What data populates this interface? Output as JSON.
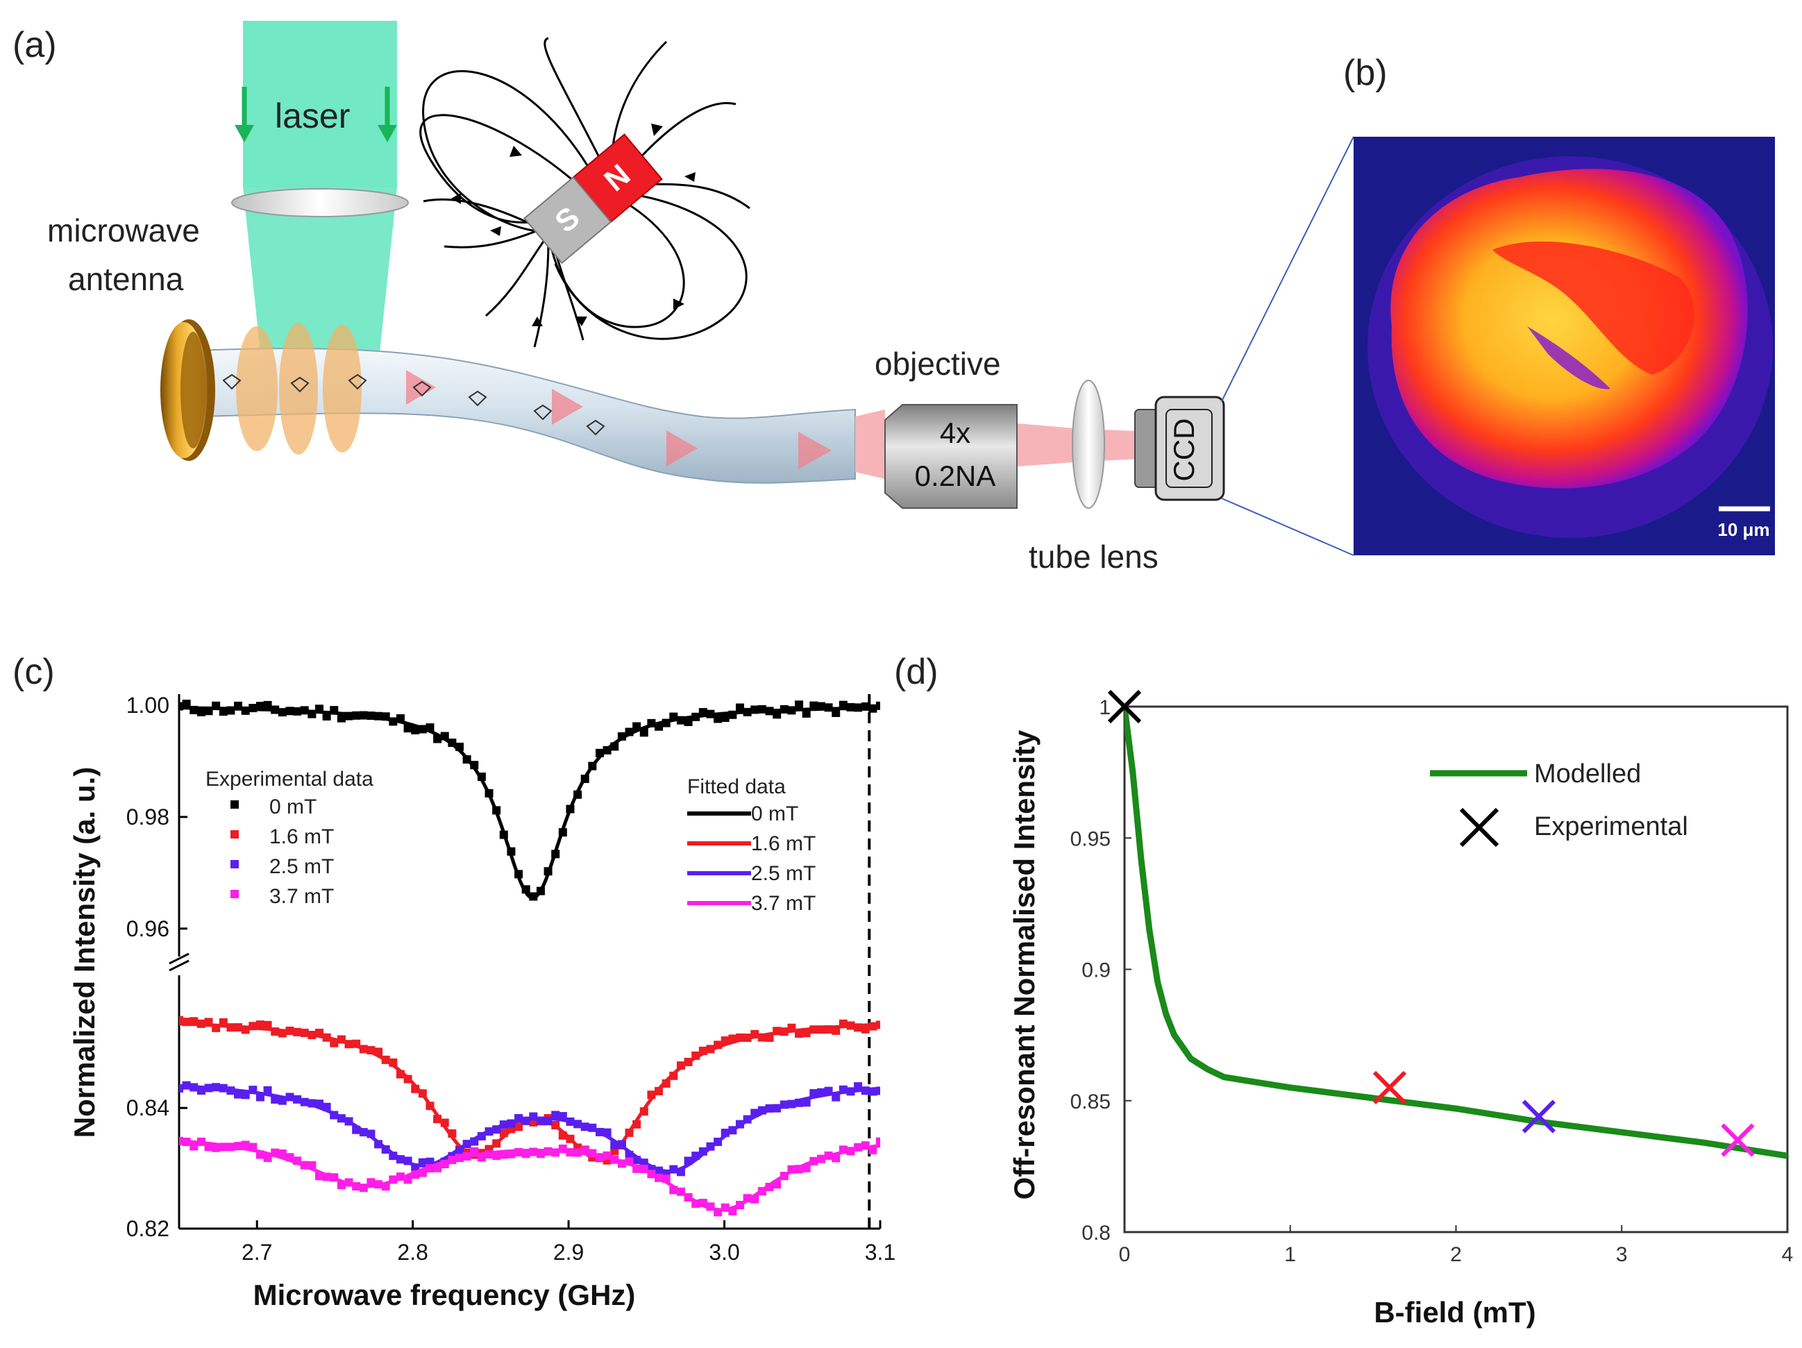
{
  "panels": {
    "a": {
      "label": "(a)",
      "laser": "laser",
      "antenna_line1": "microwave",
      "antenna_line2": "antenna",
      "objective": "objective",
      "objective_mag": "4x",
      "objective_na": "0.2NA",
      "tube_lens": "tube lens",
      "ccd": "CCD",
      "magnet_n": "N",
      "magnet_s": "S"
    },
    "b": {
      "label": "(b)",
      "scale_bar": "10 μm"
    },
    "c": {
      "label": "(c)"
    },
    "d": {
      "label": "(d)"
    }
  },
  "colors": {
    "laser": "#72e8c4",
    "fiber": "#c6d7e4",
    "red": "#ee1c24",
    "blue": "#5a1ff0",
    "magenta": "#ff1de8",
    "green": "#1a8a1a"
  },
  "chart_data": [
    {
      "id": "c",
      "type": "scatter",
      "title": "",
      "xlabel": "Microwave frequency (GHz)",
      "ylabel": "Normalized Intensity (a. u.)",
      "xlim": [
        2.65,
        3.1
      ],
      "xticks": [
        "2.7",
        "2.8",
        "2.9",
        "3.0",
        "3.1"
      ],
      "xtick_values": [
        2.7,
        2.8,
        2.9,
        3.0,
        3.1
      ],
      "yticks_upper": [
        "0.96",
        "0.98",
        "1.00"
      ],
      "yticks_upper_values": [
        0.96,
        0.98,
        1.0
      ],
      "yticks_lower": [
        "0.82",
        "0.84"
      ],
      "yticks_lower_values": [
        0.82,
        0.84
      ],
      "ylim_upper": [
        0.955,
        1.002
      ],
      "ylim_lower": [
        0.82,
        0.862
      ],
      "axis_break": "between 0.96 and 0.84",
      "legend_experimental": {
        "title": "Experimental data",
        "entries": [
          "0 mT",
          "1.6 mT",
          "2.5 mT",
          "3.7 mT"
        ]
      },
      "legend_fitted": {
        "title": "Fitted data",
        "entries": [
          "0 mT",
          "1.6 mT",
          "2.5 mT",
          "3.7 mT"
        ]
      },
      "series": [
        {
          "name": "0 mT",
          "color": "#000000",
          "axis": "upper",
          "fit": {
            "baseline": 1.0,
            "dips": [
              {
                "center": 2.877,
                "depth": 0.0345,
                "hwhm": 0.026
              }
            ]
          }
        },
        {
          "name": "1.6 mT",
          "color": "#ee1c24",
          "axis": "lower",
          "fit": {
            "baseline": 0.855,
            "dips": [
              {
                "center": 2.838,
                "depth": 0.0195,
                "hwhm": 0.036
              },
              {
                "center": 2.922,
                "depth": 0.0205,
                "hwhm": 0.036
              }
            ]
          }
        },
        {
          "name": "2.5 mT",
          "color": "#5a1ff0",
          "axis": "lower",
          "fit": {
            "baseline": 0.845,
            "dips": [
              {
                "center": 2.805,
                "depth": 0.0135,
                "hwhm": 0.045
              },
              {
                "center": 2.965,
                "depth": 0.0145,
                "hwhm": 0.045
              }
            ]
          }
        },
        {
          "name": "3.7 mT",
          "color": "#ff1de8",
          "axis": "lower",
          "fit": {
            "baseline": 0.836,
            "dips": [
              {
                "center": 2.77,
                "depth": 0.0085,
                "hwhm": 0.05
              },
              {
                "center": 2.998,
                "depth": 0.0125,
                "hwhm": 0.045
              }
            ]
          }
        }
      ],
      "vertical_dashed_line_x": 3.093
    },
    {
      "id": "d",
      "type": "line",
      "title": "",
      "xlabel": "B-field (mT)",
      "ylabel": "Off-resonant Normalised Intensity",
      "xlim": [
        0,
        4
      ],
      "ylim": [
        0.8,
        1.0
      ],
      "xticks": [
        "0",
        "1",
        "2",
        "3",
        "4"
      ],
      "xtick_values": [
        0,
        1,
        2,
        3,
        4
      ],
      "yticks": [
        "0.8",
        "0.85",
        "0.9",
        "0.95",
        "1"
      ],
      "ytick_values": [
        0.8,
        0.85,
        0.9,
        0.95,
        1.0
      ],
      "legend": [
        "Modelled",
        "Experimental"
      ],
      "series": [
        {
          "name": "Modelled",
          "color": "#1a8a1a",
          "x": [
            0,
            0.05,
            0.1,
            0.15,
            0.2,
            0.25,
            0.3,
            0.4,
            0.5,
            0.6,
            0.8,
            1.0,
            1.5,
            2.0,
            2.5,
            3.0,
            3.5,
            4.0
          ],
          "y": [
            1.0,
            0.975,
            0.942,
            0.915,
            0.895,
            0.883,
            0.875,
            0.866,
            0.862,
            0.859,
            0.857,
            0.855,
            0.851,
            0.847,
            0.842,
            0.838,
            0.834,
            0.829
          ]
        },
        {
          "name": "Experimental",
          "markers": [
            {
              "x": 0,
              "y": 1.0,
              "color": "#000000"
            },
            {
              "x": 1.6,
              "y": 0.855,
              "color": "#ee1c24"
            },
            {
              "x": 2.5,
              "y": 0.844,
              "color": "#5a1ff0"
            },
            {
              "x": 3.7,
              "y": 0.835,
              "color": "#ff1de8"
            }
          ]
        }
      ]
    }
  ]
}
